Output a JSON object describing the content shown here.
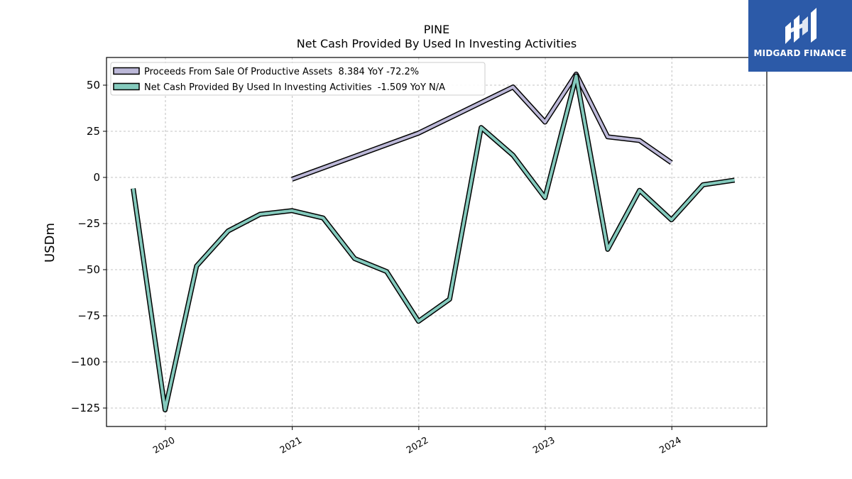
{
  "header": {
    "ticker": "PINE",
    "subtitle": "Net Cash Provided By Used In Investing Activities"
  },
  "logo": {
    "text": "MIDGARD FINANCE",
    "color": "#2c5aa8"
  },
  "chart_data": {
    "type": "line",
    "title": "PINE",
    "subtitle": "Net Cash Provided By Used In Investing Activities",
    "xlabel": "",
    "ylabel": "USDm",
    "ylim": [
      -135,
      65
    ],
    "xlim": [
      "2019-07-15",
      "2024-10-01"
    ],
    "grid": true,
    "legend_position": "top-left",
    "x_ticks": [
      "2020",
      "2021",
      "2022",
      "2023",
      "2024"
    ],
    "y_ticks": [
      "50",
      "25",
      "0",
      "−25",
      "−50",
      "−75",
      "−100",
      "−125"
    ],
    "y_tick_values": [
      50,
      25,
      0,
      -25,
      -50,
      -75,
      -100,
      -125
    ],
    "series": [
      {
        "name": "Proceeds From Sale Of Productive Assets",
        "legend_label": "Proceeds From Sale Of Productive Assets  8.384 YoY -72.2%",
        "color": "#bcb8d8",
        "points": [
          {
            "x": "2020-12-31",
            "y": -1
          },
          {
            "x": "2021-12-31",
            "y": 24
          },
          {
            "x": "2022-09-30",
            "y": 49
          },
          {
            "x": "2022-12-31",
            "y": 30
          },
          {
            "x": "2023-03-31",
            "y": 56
          },
          {
            "x": "2023-06-30",
            "y": 22
          },
          {
            "x": "2023-09-30",
            "y": 20
          },
          {
            "x": "2023-12-31",
            "y": 8
          }
        ]
      },
      {
        "name": "Net Cash Provided By Used In Investing Activities",
        "legend_label": "Net Cash Provided By Used In Investing Activities  -1.509 YoY N/A",
        "color": "#84cabd",
        "points": [
          {
            "x": "2019-09-30",
            "y": -6
          },
          {
            "x": "2019-12-31",
            "y": -126
          },
          {
            "x": "2020-03-31",
            "y": -48
          },
          {
            "x": "2020-06-30",
            "y": -29
          },
          {
            "x": "2020-09-30",
            "y": -20
          },
          {
            "x": "2020-12-31",
            "y": -18
          },
          {
            "x": "2021-03-31",
            "y": -22
          },
          {
            "x": "2021-06-30",
            "y": -44
          },
          {
            "x": "2021-09-30",
            "y": -51
          },
          {
            "x": "2021-12-31",
            "y": -78
          },
          {
            "x": "2022-03-31",
            "y": -66
          },
          {
            "x": "2022-06-30",
            "y": 27
          },
          {
            "x": "2022-09-30",
            "y": 12
          },
          {
            "x": "2022-12-31",
            "y": -11
          },
          {
            "x": "2023-03-31",
            "y": 55
          },
          {
            "x": "2023-06-30",
            "y": -39
          },
          {
            "x": "2023-09-30",
            "y": -7
          },
          {
            "x": "2023-12-31",
            "y": -23
          },
          {
            "x": "2024-03-31",
            "y": -4
          },
          {
            "x": "2024-06-30",
            "y": -1.5
          }
        ]
      }
    ]
  }
}
